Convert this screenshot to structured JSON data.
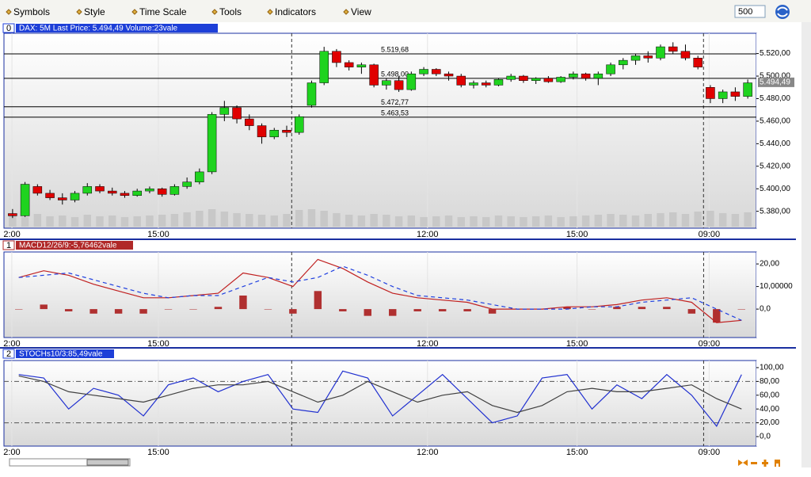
{
  "toolbar": {
    "menus": [
      "Symbols",
      "Style",
      "Time Scale",
      "Tools",
      "Indicators",
      "View"
    ],
    "input": "500"
  },
  "chart_data": [
    {
      "type": "candlestick",
      "panel": "0",
      "title": "DAX: 5M Last Price: 5.494,49 Volume:23vale",
      "xlim": [
        0,
        60
      ],
      "xticks": [
        {
          "value": 0.45,
          "label": "2:00"
        },
        {
          "value": 12.2,
          "label": "15:00"
        },
        {
          "value": 33.8,
          "label": "12:00"
        },
        {
          "value": 45.8,
          "label": "15:00"
        },
        {
          "value": 56.4,
          "label": "09:00"
        }
      ],
      "session_breaks": [
        22.9,
        55.95
      ],
      "ylim": [
        5365,
        5538
      ],
      "yticks": [
        {
          "value": 5380,
          "label": "5.380,00"
        },
        {
          "value": 5400,
          "label": "5.400,00"
        },
        {
          "value": 5420,
          "label": "5.420,00"
        },
        {
          "value": 5440,
          "label": "5.440,00"
        },
        {
          "value": 5460,
          "label": "5.460,00"
        },
        {
          "value": 5480,
          "label": "5.480,00"
        },
        {
          "value": 5500,
          "label": "5.500,00"
        },
        {
          "value": 5520,
          "label": "5.520,00"
        }
      ],
      "levels": [
        {
          "value": 5519.68,
          "label": "5.519,68"
        },
        {
          "value": 5498.0,
          "label": "5.498,00"
        },
        {
          "value": 5472.77,
          "label": "5.472,77"
        },
        {
          "value": 5463.53,
          "label": "5.463,53"
        }
      ],
      "last_price": {
        "value": 5494.49,
        "label": "5.494,49"
      },
      "up_color": "#1fd31f",
      "down_color": "#e00000",
      "open": [
        5378,
        5376,
        5402,
        5396,
        5392,
        5390,
        5396,
        5402,
        5398,
        5396,
        5394,
        5398,
        5400,
        5395,
        5402,
        5406,
        5415,
        5466,
        5472,
        5462,
        5456,
        5446,
        5452,
        5450,
        5474,
        5494,
        5522,
        5512,
        5508,
        5510,
        5492,
        5496,
        5488,
        5502,
        5506,
        5502,
        5500,
        5492,
        5494,
        5492,
        5497,
        5500,
        5496,
        5498,
        5495,
        5499,
        5502,
        5498,
        5502,
        5510,
        5514,
        5518,
        5516,
        5526,
        5522,
        5516,
        5490,
        5480,
        5486,
        5482
      ],
      "high": [
        5382,
        5406,
        5404,
        5399,
        5396,
        5398,
        5405,
        5404,
        5401,
        5398,
        5400,
        5402,
        5401,
        5404,
        5410,
        5418,
        5468,
        5478,
        5474,
        5466,
        5458,
        5454,
        5456,
        5466,
        5496,
        5526,
        5524,
        5514,
        5512,
        5511,
        5498,
        5500,
        5504,
        5508,
        5507,
        5504,
        5502,
        5496,
        5496,
        5498,
        5502,
        5501,
        5499,
        5500,
        5500,
        5504,
        5503,
        5504,
        5512,
        5516,
        5520,
        5522,
        5528,
        5530,
        5528,
        5518,
        5492,
        5488,
        5490,
        5497
      ],
      "low": [
        5374,
        5375,
        5394,
        5390,
        5386,
        5388,
        5394,
        5396,
        5394,
        5392,
        5393,
        5396,
        5393,
        5394,
        5400,
        5404,
        5413,
        5460,
        5458,
        5452,
        5440,
        5444,
        5446,
        5448,
        5472,
        5492,
        5508,
        5505,
        5502,
        5490,
        5488,
        5486,
        5487,
        5500,
        5500,
        5496,
        5490,
        5489,
        5490,
        5491,
        5495,
        5494,
        5493,
        5494,
        5494,
        5497,
        5496,
        5492,
        5500,
        5506,
        5510,
        5512,
        5514,
        5520,
        5514,
        5506,
        5476,
        5476,
        5478,
        5480
      ],
      "close": [
        5376,
        5404,
        5396,
        5392,
        5390,
        5396,
        5402,
        5398,
        5396,
        5394,
        5398,
        5400,
        5395,
        5402,
        5406,
        5415,
        5466,
        5472,
        5462,
        5456,
        5446,
        5452,
        5450,
        5464,
        5494,
        5522,
        5512,
        5508,
        5510,
        5492,
        5496,
        5488,
        5502,
        5506,
        5502,
        5500,
        5492,
        5494,
        5492,
        5497,
        5500,
        5496,
        5498,
        5495,
        5499,
        5502,
        5498,
        5502,
        5510,
        5514,
        5518,
        5516,
        5526,
        5522,
        5516,
        5508,
        5480,
        5486,
        5482,
        5494
      ],
      "volume": [
        14,
        12,
        16,
        13,
        14,
        12,
        15,
        13,
        14,
        12,
        13,
        14,
        15,
        16,
        18,
        20,
        22,
        19,
        17,
        16,
        15,
        14,
        16,
        21,
        22,
        20,
        17,
        15,
        14,
        16,
        15,
        13,
        14,
        12,
        13,
        14,
        12,
        13,
        12,
        14,
        13,
        12,
        13,
        14,
        12,
        13,
        14,
        15,
        16,
        15,
        14,
        16,
        17,
        18,
        16,
        19,
        20,
        17,
        16,
        18
      ]
    },
    {
      "type": "line",
      "panel": "1",
      "title": "MACD12/26/9:-5,76462vale",
      "xlim": [
        0,
        30
      ],
      "xticks": [
        {
          "value": 0.22,
          "label": "2:00"
        },
        {
          "value": 6.1,
          "label": "15:00"
        },
        {
          "value": 16.9,
          "label": "12:00"
        },
        {
          "value": 22.9,
          "label": "15:00"
        },
        {
          "value": 28.2,
          "label": "09:00"
        }
      ],
      "session_breaks": [
        11.45,
        27.98
      ],
      "ylim": [
        -12.6,
        25.3
      ],
      "yticks": [
        {
          "value": 0,
          "label": "0,0"
        },
        {
          "value": 10,
          "label": "10,00000"
        },
        {
          "value": 20,
          "label": "20,00"
        }
      ],
      "series": [
        {
          "style": "bar",
          "color": "#b03030",
          "values": [
            0,
            2,
            -1,
            -2,
            -2,
            -2,
            0,
            0,
            1,
            6,
            0,
            -2,
            8,
            -1,
            -3,
            -3,
            -1,
            -1,
            -1,
            -2,
            0,
            0,
            1,
            0,
            1,
            1,
            1,
            -2,
            -6,
            0
          ]
        },
        {
          "style": "solid",
          "color": "#c02020",
          "values": [
            14,
            17,
            15,
            11,
            8,
            5,
            5,
            6,
            7,
            16,
            14,
            10,
            22,
            18,
            12,
            7,
            5,
            4,
            3,
            0,
            0,
            0,
            1,
            1,
            2,
            4,
            5,
            3,
            -6,
            -5
          ]
        },
        {
          "style": "dashed",
          "color": "#2040e0",
          "values": [
            14,
            15,
            16,
            13,
            10,
            7,
            5,
            6,
            6,
            10,
            14,
            12,
            14,
            19,
            15,
            10,
            6,
            5,
            4,
            2,
            0,
            0,
            0,
            1,
            1,
            3,
            4,
            5,
            0,
            -5
          ]
        }
      ]
    },
    {
      "type": "line",
      "panel": "2",
      "title": "STOCHs10/3:85,49vale",
      "xlim": [
        0,
        30
      ],
      "xticks": [
        {
          "value": 0.22,
          "label": "2:00"
        },
        {
          "value": 6.1,
          "label": "15:00"
        },
        {
          "value": 16.9,
          "label": "12:00"
        },
        {
          "value": 22.9,
          "label": "15:00"
        },
        {
          "value": 28.2,
          "label": "09:00"
        }
      ],
      "session_breaks": [
        11.45,
        27.98
      ],
      "ylim": [
        -13.8,
        110.3
      ],
      "yticks": [
        {
          "value": 0,
          "label": "0,0"
        },
        {
          "value": 20,
          "label": "20,00"
        },
        {
          "value": 40,
          "label": "40,00"
        },
        {
          "value": 60,
          "label": "60,00"
        },
        {
          "value": 80,
          "label": "80,00"
        },
        {
          "value": 100,
          "label": "100,00"
        }
      ],
      "ref_lines": [
        20,
        80
      ],
      "series": [
        {
          "style": "solid",
          "color": "#2030d0",
          "values": [
            90,
            85,
            40,
            70,
            60,
            30,
            75,
            85,
            65,
            80,
            90,
            40,
            35,
            95,
            85,
            30,
            60,
            90,
            55,
            20,
            30,
            85,
            90,
            40,
            75,
            55,
            90,
            60,
            15,
            90
          ]
        },
        {
          "style": "solid",
          "color": "#404040",
          "values": [
            88,
            80,
            65,
            60,
            55,
            50,
            60,
            70,
            75,
            75,
            80,
            65,
            50,
            60,
            80,
            65,
            50,
            60,
            65,
            45,
            35,
            45,
            65,
            70,
            65,
            65,
            70,
            75,
            55,
            40
          ]
        }
      ]
    }
  ]
}
